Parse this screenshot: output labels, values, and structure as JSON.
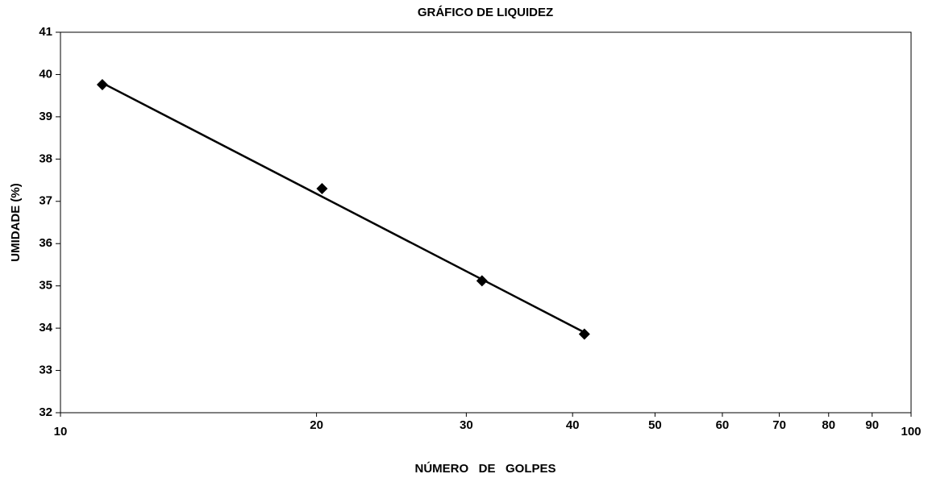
{
  "chart_data": {
    "type": "scatter",
    "title": "GRÁFICO DE LIQUIDEZ",
    "x_label": "NÚMERO   DE   GOLPES",
    "y_label": "UMIDADE (%)",
    "x": [
      11.2,
      20.3,
      31.3,
      41.3
    ],
    "values": [
      39.76,
      37.3,
      35.12,
      33.86
    ],
    "trendline": {
      "x": [
        11.2,
        41.3
      ],
      "values": [
        39.8,
        33.9
      ]
    },
    "color": "#000000",
    "x_log": true,
    "xlim": [
      10,
      100
    ],
    "xticks": [
      10,
      20,
      30,
      40,
      50,
      60,
      70,
      80,
      90,
      100
    ],
    "ylim": [
      32,
      41
    ],
    "yticks": [
      32,
      33,
      34,
      35,
      36,
      37,
      38,
      39,
      40,
      41
    ],
    "grid": false
  }
}
